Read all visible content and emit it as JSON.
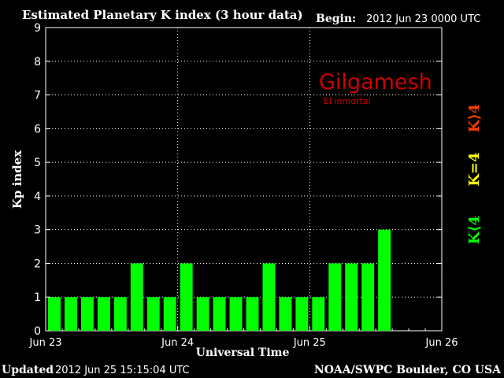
{
  "header": {
    "title": "Estimated Planetary K index (3 hour data)",
    "begin_label": "Begin:",
    "begin_value": "2012 Jun 23 0000 UTC"
  },
  "footer": {
    "updated_label": "Updated",
    "updated_value": "2012 Jun 25 15:15:04 UTC",
    "credit": "NOAA/SWPC Boulder, CO USA"
  },
  "watermark": {
    "title": "Gilgamesh",
    "subtitle": "El inmortal"
  },
  "legend": {
    "items": [
      {
        "label": "K⟩4",
        "color": "#ff3b00"
      },
      {
        "label": "K=4",
        "color": "#ffff00"
      },
      {
        "label": "K⟨4",
        "color": "#00ff00"
      }
    ]
  },
  "chart_data": {
    "type": "bar",
    "title": "Estimated Planetary K index (3 hour data)",
    "xlabel": "Universal Time",
    "ylabel": "Kp index",
    "ylim": [
      0,
      9
    ],
    "yticks": [
      "0",
      "1",
      "2",
      "3",
      "4",
      "5",
      "6",
      "7",
      "8",
      "9"
    ],
    "xtick_labels": [
      "Jun 23",
      "Jun 24",
      "Jun 25",
      "Jun 26"
    ],
    "bins_per_day": 8,
    "total_bins": 24,
    "values": [
      1,
      1,
      1,
      1,
      1,
      2,
      1,
      1,
      2,
      1,
      1,
      1,
      1,
      2,
      1,
      1,
      1,
      2,
      2,
      2,
      3
    ],
    "bar_color": "#00ff00",
    "grid": "dotted"
  }
}
